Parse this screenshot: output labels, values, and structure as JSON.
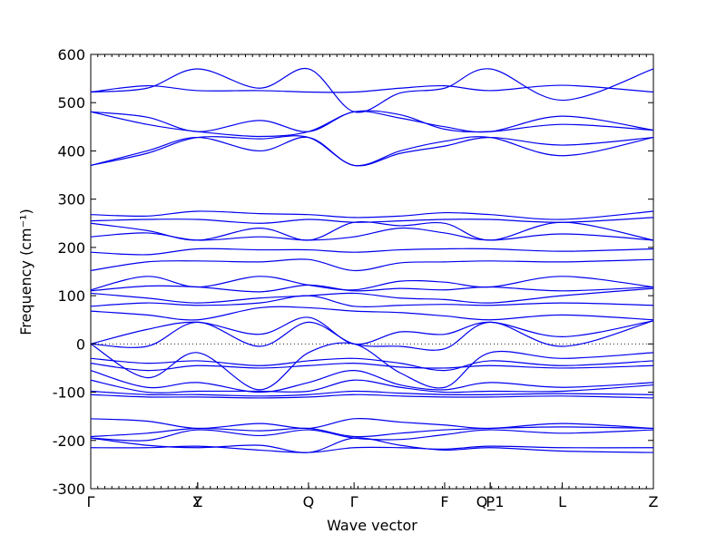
{
  "chart_data": {
    "type": "line",
    "xlabel": "Wave vector",
    "ylabel": "Frequency (cm⁻¹)",
    "ylim": [
      -300,
      600
    ],
    "yticks": [
      -300,
      -200,
      -100,
      0,
      100,
      200,
      300,
      400,
      500,
      600
    ],
    "xlim": [
      0,
      1
    ],
    "high_symmetry_points": [
      {
        "label": "Γ",
        "x": 0.0
      },
      {
        "label": "Y",
        "x": 0.19
      },
      {
        "label": "Z",
        "x": 0.19
      },
      {
        "label": "Q",
        "x": 0.387
      },
      {
        "label": "Γ",
        "x": 0.468
      },
      {
        "label": "F",
        "x": 0.629
      },
      {
        "label": "P",
        "x": 0.71
      },
      {
        "label": "Q_1",
        "x": 0.71
      },
      {
        "label": "L",
        "x": 0.838
      },
      {
        "label": "Z",
        "x": 1.0
      }
    ],
    "zero_line": true,
    "line_color": "#0000ee",
    "series": [
      {
        "x": [
          0,
          0.1,
          0.19,
          0.3,
          0.387,
          0.468,
          0.55,
          0.629,
          0.71,
          0.838,
          1.0
        ],
        "values": [
          481,
          470,
          440,
          463,
          440,
          481,
          468,
          450,
          440,
          472,
          443
        ]
      },
      {
        "x": [
          0,
          0.1,
          0.19,
          0.3,
          0.387,
          0.468,
          0.55,
          0.629,
          0.71,
          0.838,
          1.0
        ],
        "values": [
          481,
          455,
          440,
          430,
          440,
          481,
          475,
          445,
          440,
          455,
          443
        ]
      },
      {
        "x": [
          0,
          0.1,
          0.19,
          0.3,
          0.387,
          0.468,
          0.55,
          0.629,
          0.71,
          0.838,
          1.0
        ],
        "values": [
          370,
          400,
          428,
          400,
          428,
          370,
          400,
          420,
          428,
          390,
          428
        ]
      },
      {
        "x": [
          0,
          0.1,
          0.19,
          0.3,
          0.387,
          0.468,
          0.55,
          0.629,
          0.71,
          0.838,
          1.0
        ],
        "values": [
          370,
          395,
          428,
          425,
          428,
          370,
          395,
          410,
          428,
          412,
          428
        ]
      },
      {
        "x": [
          0,
          0.1,
          0.19,
          0.3,
          0.387,
          0.468,
          0.55,
          0.629,
          0.71,
          0.838,
          1.0
        ],
        "values": [
          522,
          530,
          570,
          530,
          570,
          481,
          520,
          530,
          570,
          505,
          570
        ]
      },
      {
        "x": [
          0,
          0.1,
          0.19,
          0.3,
          0.387,
          0.468,
          0.55,
          0.629,
          0.71,
          0.838,
          1.0
        ],
        "values": [
          522,
          535,
          525,
          525,
          522,
          522,
          530,
          535,
          525,
          536,
          522
        ]
      },
      {
        "x": [
          0,
          0.1,
          0.19,
          0.3,
          0.387,
          0.468,
          0.55,
          0.629,
          0.71,
          0.838,
          1.0
        ],
        "values": [
          268,
          265,
          275,
          270,
          268,
          262,
          265,
          272,
          268,
          258,
          275
        ]
      },
      {
        "x": [
          0,
          0.1,
          0.19,
          0.3,
          0.387,
          0.468,
          0.55,
          0.629,
          0.71,
          0.838,
          1.0
        ],
        "values": [
          255,
          258,
          258,
          250,
          258,
          252,
          255,
          258,
          258,
          252,
          262
        ]
      },
      {
        "x": [
          0,
          0.1,
          0.19,
          0.3,
          0.387,
          0.468,
          0.55,
          0.629,
          0.71,
          0.838,
          1.0
        ],
        "values": [
          250,
          235,
          215,
          240,
          215,
          252,
          245,
          250,
          215,
          252,
          215
        ]
      },
      {
        "x": [
          0,
          0.1,
          0.19,
          0.3,
          0.387,
          0.468,
          0.55,
          0.629,
          0.71,
          0.838,
          1.0
        ],
        "values": [
          222,
          230,
          215,
          222,
          215,
          222,
          240,
          230,
          215,
          228,
          215
        ]
      },
      {
        "x": [
          0,
          0.1,
          0.19,
          0.3,
          0.387,
          0.468,
          0.55,
          0.629,
          0.71,
          0.838,
          1.0
        ],
        "values": [
          190,
          185,
          197,
          195,
          195,
          190,
          195,
          197,
          197,
          192,
          197
        ]
      },
      {
        "x": [
          0,
          0.1,
          0.19,
          0.3,
          0.387,
          0.468,
          0.55,
          0.629,
          0.71,
          0.838,
          1.0
        ],
        "values": [
          152,
          170,
          172,
          170,
          175,
          152,
          168,
          170,
          172,
          170,
          175
        ]
      },
      {
        "x": [
          0,
          0.1,
          0.19,
          0.3,
          0.387,
          0.468,
          0.55,
          0.629,
          0.71,
          0.838,
          1.0
        ],
        "values": [
          112,
          140,
          118,
          140,
          122,
          112,
          130,
          128,
          118,
          140,
          118
        ]
      },
      {
        "x": [
          0,
          0.1,
          0.19,
          0.3,
          0.387,
          0.468,
          0.55,
          0.629,
          0.71,
          0.838,
          1.0
        ],
        "values": [
          110,
          120,
          118,
          108,
          122,
          110,
          115,
          112,
          118,
          110,
          118
        ]
      },
      {
        "x": [
          0,
          0.1,
          0.19,
          0.3,
          0.387,
          0.468,
          0.55,
          0.629,
          0.71,
          0.838,
          1.0
        ],
        "values": [
          105,
          95,
          85,
          95,
          100,
          105,
          95,
          92,
          85,
          100,
          115
        ]
      },
      {
        "x": [
          0,
          0.1,
          0.19,
          0.3,
          0.387,
          0.468,
          0.55,
          0.629,
          0.71,
          0.838,
          1.0
        ],
        "values": [
          78,
          85,
          80,
          85,
          100,
          78,
          80,
          82,
          80,
          85,
          80
        ]
      },
      {
        "x": [
          0,
          0.1,
          0.19,
          0.3,
          0.387,
          0.468,
          0.55,
          0.629,
          0.71,
          0.838,
          1.0
        ],
        "values": [
          68,
          60,
          50,
          75,
          75,
          68,
          65,
          58,
          50,
          60,
          50
        ]
      },
      {
        "x": [
          0,
          0.1,
          0.19,
          0.3,
          0.387,
          0.468,
          0.55,
          0.629,
          0.71,
          0.838,
          1.0
        ],
        "values": [
          0,
          30,
          45,
          20,
          55,
          0,
          25,
          20,
          45,
          15,
          48
        ]
      },
      {
        "x": [
          0,
          0.1,
          0.19,
          0.3,
          0.387,
          0.468,
          0.55,
          0.629,
          0.71,
          0.838,
          1.0
        ],
        "values": [
          0,
          -5,
          45,
          -5,
          45,
          0,
          -5,
          -10,
          45,
          -5,
          48
        ]
      },
      {
        "x": [
          0,
          0.1,
          0.19,
          0.3,
          0.387,
          0.468,
          0.55,
          0.629,
          0.71,
          0.838,
          1.0
        ],
        "values": [
          0,
          -70,
          -18,
          -95,
          -18,
          0,
          -60,
          -90,
          -18,
          -30,
          -18
        ]
      },
      {
        "x": [
          0,
          0.1,
          0.19,
          0.3,
          0.387,
          0.468,
          0.55,
          0.629,
          0.71,
          0.838,
          1.0
        ],
        "values": [
          -30,
          -40,
          -35,
          -45,
          -35,
          -30,
          -40,
          -55,
          -35,
          -45,
          -35
        ]
      },
      {
        "x": [
          0,
          0.1,
          0.19,
          0.3,
          0.387,
          0.468,
          0.55,
          0.629,
          0.71,
          0.838,
          1.0
        ],
        "values": [
          -40,
          -55,
          -45,
          -50,
          -45,
          -40,
          -48,
          -50,
          -45,
          -50,
          -45
        ]
      },
      {
        "x": [
          0,
          0.1,
          0.19,
          0.3,
          0.387,
          0.468,
          0.55,
          0.629,
          0.71,
          0.838,
          1.0
        ],
        "values": [
          -55,
          -90,
          -80,
          -100,
          -80,
          -55,
          -85,
          -95,
          -80,
          -90,
          -80
        ]
      },
      {
        "x": [
          0,
          0.1,
          0.19,
          0.3,
          0.387,
          0.468,
          0.55,
          0.629,
          0.71,
          0.838,
          1.0
        ],
        "values": [
          -75,
          -100,
          -98,
          -98,
          -98,
          -75,
          -90,
          -100,
          -98,
          -98,
          -85
        ]
      },
      {
        "x": [
          0,
          0.1,
          0.19,
          0.3,
          0.387,
          0.468,
          0.55,
          0.629,
          0.71,
          0.838,
          1.0
        ],
        "values": [
          -98,
          -105,
          -105,
          -108,
          -105,
          -98,
          -102,
          -105,
          -105,
          -103,
          -105
        ]
      },
      {
        "x": [
          0,
          0.1,
          0.19,
          0.3,
          0.387,
          0.468,
          0.55,
          0.629,
          0.71,
          0.838,
          1.0
        ],
        "values": [
          -105,
          -110,
          -110,
          -112,
          -110,
          -105,
          -108,
          -110,
          -110,
          -108,
          -112
        ]
      },
      {
        "x": [
          0,
          0.1,
          0.19,
          0.3,
          0.387,
          0.468,
          0.55,
          0.629,
          0.71,
          0.838,
          1.0
        ],
        "values": [
          -155,
          -160,
          -175,
          -165,
          -175,
          -155,
          -162,
          -168,
          -175,
          -165,
          -175
        ]
      },
      {
        "x": [
          0,
          0.1,
          0.19,
          0.3,
          0.387,
          0.468,
          0.55,
          0.629,
          0.71,
          0.838,
          1.0
        ],
        "values": [
          -192,
          -185,
          -175,
          -180,
          -175,
          -192,
          -185,
          -178,
          -175,
          -172,
          -175
        ]
      },
      {
        "x": [
          0,
          0.1,
          0.19,
          0.3,
          0.387,
          0.468,
          0.55,
          0.629,
          0.71,
          0.838,
          1.0
        ],
        "values": [
          -195,
          -200,
          -178,
          -190,
          -178,
          -195,
          -198,
          -188,
          -178,
          -185,
          -178
        ]
      },
      {
        "x": [
          0,
          0.1,
          0.19,
          0.3,
          0.387,
          0.468,
          0.55,
          0.629,
          0.71,
          0.838,
          1.0
        ],
        "values": [
          -215,
          -215,
          -212,
          -220,
          -225,
          -215,
          -215,
          -218,
          -212,
          -215,
          -215
        ]
      },
      {
        "x": [
          0,
          0.1,
          0.19,
          0.3,
          0.387,
          0.468,
          0.55,
          0.629,
          0.71,
          0.838,
          1.0
        ],
        "values": [
          -195,
          -210,
          -215,
          -210,
          -225,
          -195,
          -210,
          -220,
          -215,
          -222,
          -225
        ]
      }
    ]
  }
}
